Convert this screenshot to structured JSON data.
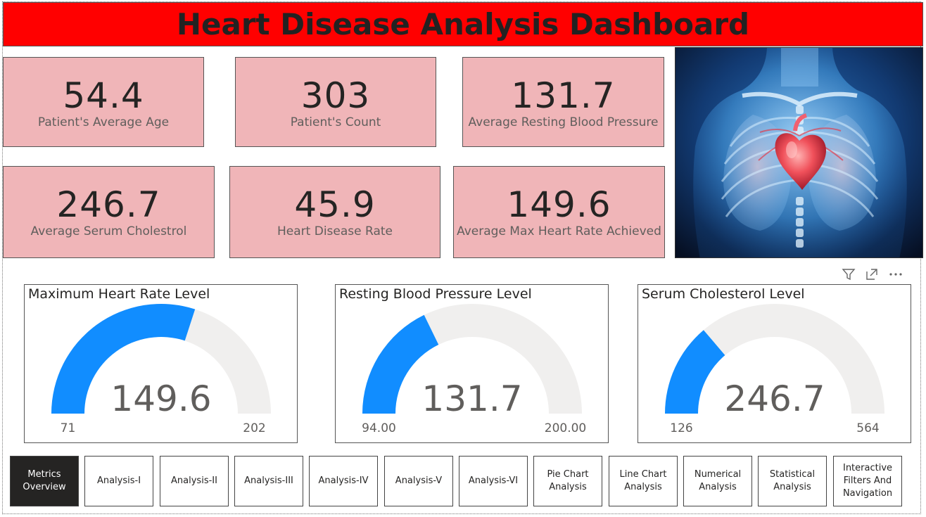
{
  "header": {
    "title": "Heart Disease Analysis Dashboard"
  },
  "colors": {
    "title_bg": "#ff0000",
    "kpi_bg": "#f0b5b8",
    "gauge_fill": "#118dff",
    "gauge_track": "#f0efee",
    "nav_active_bg": "#252423"
  },
  "kpis": [
    {
      "value": "54.4",
      "label": "Patient's Average Age"
    },
    {
      "value": "303",
      "label": "Patient's Count"
    },
    {
      "value": "131.7",
      "label": "Average Resting Blood Pressure"
    },
    {
      "value": "246.7",
      "label": "Average Serum Cholestrol"
    },
    {
      "value": "45.9",
      "label": "Heart Disease Rate"
    },
    {
      "value": "149.6",
      "label": "Average Max Heart Rate Achieved"
    }
  ],
  "hero_image": {
    "icon": "heart-anatomy-illustration"
  },
  "visual_header_icons": [
    "filter-icon",
    "focus-mode-icon",
    "more-options-icon"
  ],
  "gauges": [
    {
      "title": "Maximum Heart Rate Level",
      "value_label": "149.6",
      "value": 149.6,
      "min_label": "71",
      "max_label": "202",
      "min": 71,
      "max": 202
    },
    {
      "title": "Resting Blood Pressure Level",
      "value_label": "131.7",
      "value": 131.7,
      "min_label": "94.00",
      "max_label": "200.00",
      "min": 94,
      "max": 200
    },
    {
      "title": "Serum Cholesterol Level",
      "value_label": "246.7",
      "value": 246.7,
      "min_label": "126",
      "max_label": "564",
      "min": 126,
      "max": 564
    }
  ],
  "nav": [
    {
      "label": "Metrics Overview",
      "active": true
    },
    {
      "label": "Analysis-I"
    },
    {
      "label": "Analysis-II"
    },
    {
      "label": "Analysis-III"
    },
    {
      "label": "Analysis-IV"
    },
    {
      "label": "Analysis-V"
    },
    {
      "label": "Analysis-VI"
    },
    {
      "label": "Pie Chart Analysis"
    },
    {
      "label": "Line Chart Analysis"
    },
    {
      "label": "Numerical Analysis"
    },
    {
      "label": "Statistical Analysis"
    },
    {
      "label": "Interactive Filters And Navigation"
    }
  ]
}
